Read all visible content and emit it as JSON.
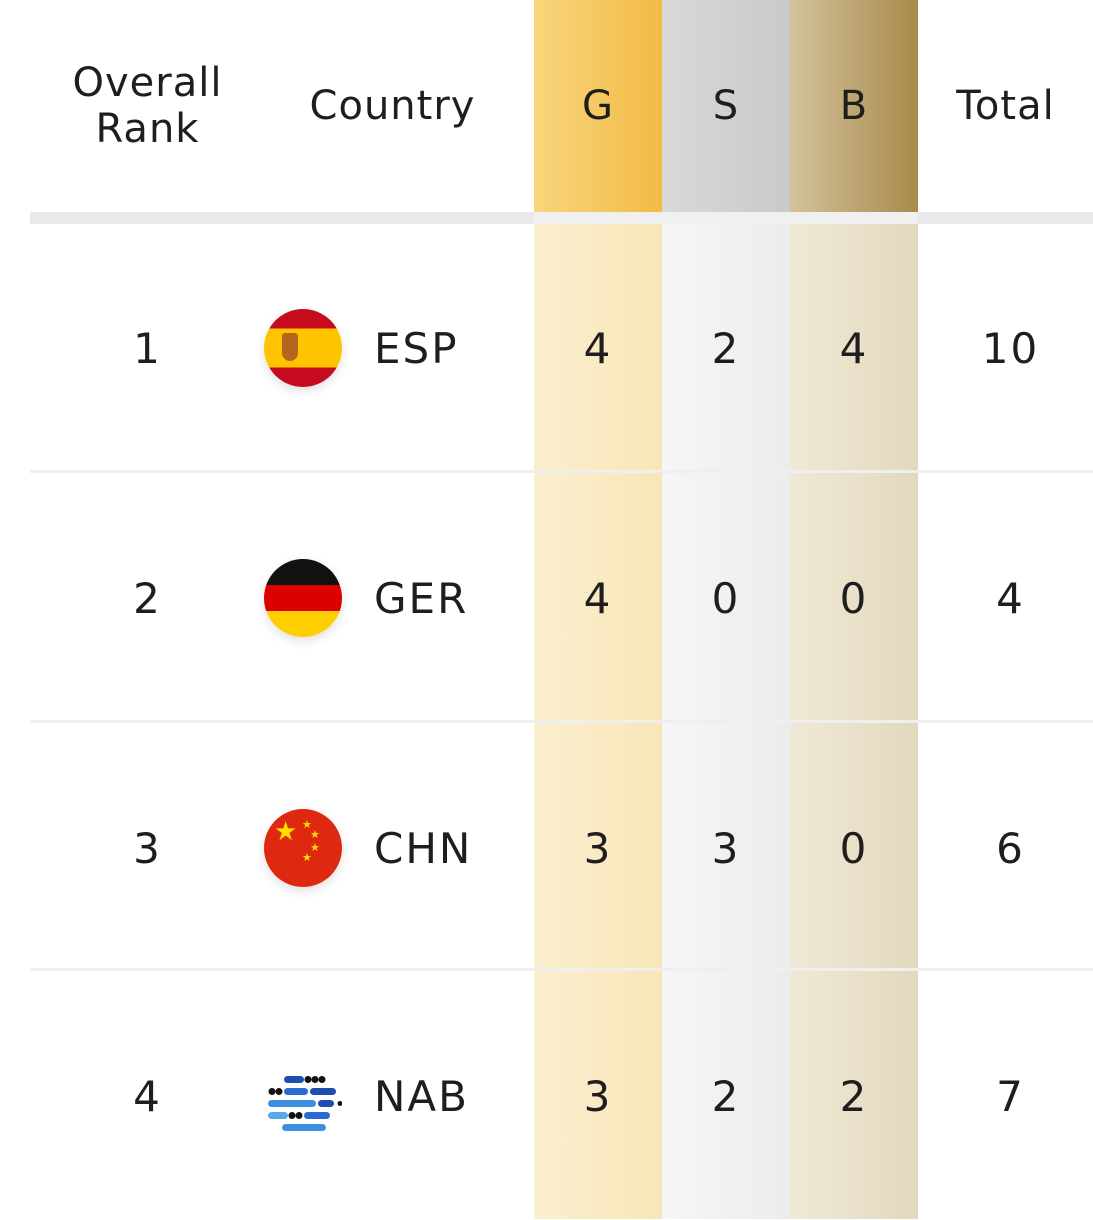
{
  "headers": {
    "rank": "Overall Rank",
    "country": "Country",
    "gold": "G",
    "silver": "S",
    "bronze": "B",
    "total": "Total"
  },
  "colors": {
    "gold": "#f2bb44",
    "silver": "#c9c9c9",
    "bronze": "#a88a4c"
  },
  "rows": [
    {
      "rank": "1",
      "flag": "spain-flag-icon",
      "code": "ESP",
      "gold": "4",
      "silver": "2",
      "bronze": "4",
      "total": "10"
    },
    {
      "rank": "2",
      "flag": "germany-flag-icon",
      "code": "GER",
      "gold": "4",
      "silver": "0",
      "bronze": "0",
      "total": "4"
    },
    {
      "rank": "3",
      "flag": "china-flag-icon",
      "code": "CHN",
      "gold": "3",
      "silver": "3",
      "bronze": "0",
      "total": "6"
    },
    {
      "rank": "4",
      "flag": "nab-logo-icon",
      "code": "NAB",
      "gold": "3",
      "silver": "2",
      "bronze": "2",
      "total": "7"
    }
  ]
}
